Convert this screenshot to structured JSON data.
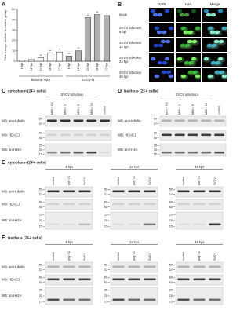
{
  "chart_data": {
    "type": "bar",
    "label": "A",
    "y_label": "Fold change relative to control group",
    "categories": [
      "6 hpi",
      "12 hpi",
      "24 hpi",
      "48 hpi",
      "72 hpi",
      "6 hpi",
      "12 hpi",
      "24 hpi",
      "48 hpi",
      "72 hpi"
    ],
    "values": [
      1.2,
      1.6,
      3.5,
      8,
      9,
      5,
      10,
      42,
      45,
      44
    ],
    "significance": [
      null,
      "*",
      "**",
      "**",
      "**",
      "**",
      "**",
      "**",
      "**",
      "**"
    ],
    "groups": [
      "histone H2A",
      "SVCV-N"
    ],
    "colors": [
      "#ffffff",
      "#b0b0b0"
    ],
    "ylim": [
      0,
      50
    ],
    "yticks": [
      0,
      10,
      20,
      30,
      40,
      50
    ]
  },
  "microscopy": {
    "label": "B",
    "columns": [
      "DAPI",
      "H2A",
      "Merge"
    ],
    "rows": [
      [
        "Mock"
      ],
      [
        "SVCV infection",
        "6 hpi"
      ],
      [
        "SVCV infection",
        "12 hpi"
      ],
      [
        "SVCV infection",
        "24 hpi"
      ],
      [
        "SVCV infection",
        "48 hpi"
      ]
    ]
  },
  "blots_moi": [
    {
      "label": "C",
      "title": "cytoplasm (ZF4 cells)",
      "header": "SVCV infection",
      "lanes": [
        "MOI = 0.1",
        "MOI = 1",
        "MOI = 5",
        "MOI = 10",
        "control"
      ],
      "rows": [
        {
          "name": "WB: anti-tubulin",
          "markers": [
            50,
            37
          ]
        },
        {
          "name": "WB: HDAC1",
          "markers": [
            60,
            50
          ]
        },
        {
          "name": "WB: anti-H2A",
          "markers": [
            25,
            20,
            15
          ]
        }
      ]
    },
    {
      "label": "D",
      "title": "Nucleus (ZF4 cells)",
      "header": "SVCV infection",
      "lanes": [
        "MOI = 0.1",
        "MOI = 1",
        "MOI = 5",
        "MOI = 10",
        "control"
      ],
      "rows": [
        {
          "name": "WB: anti-tubulin",
          "markers": [
            50,
            37
          ]
        },
        {
          "name": "WB: HDAC1",
          "markers": [
            60,
            50
          ]
        },
        {
          "name": "WB: anti-H2A",
          "markers": [
            25,
            20,
            15
          ]
        }
      ]
    }
  ],
  "blots_time": [
    {
      "label": "E",
      "title": "cytoplasm (ZF4 cells)",
      "groups": [
        {
          "name": "6 hpi",
          "lanes": [
            "control",
            "poly I:C",
            "SVCV"
          ]
        },
        {
          "name": "24 hpi",
          "lanes": [
            "control",
            "poly I:C",
            "SVCV"
          ]
        },
        {
          "name": "48 hpi",
          "lanes": [
            "control",
            "poly I:C",
            "SVCV"
          ]
        }
      ],
      "rows": [
        {
          "name": "WB: anti-tubulin",
          "markers": [
            50,
            37
          ]
        },
        {
          "name": "WB: HDAC1",
          "markers": [
            60,
            50
          ]
        },
        {
          "name": "WB: anti-H2A",
          "markers": [
            25,
            20,
            15
          ]
        }
      ]
    },
    {
      "label": "F",
      "title": "Nucleus (ZF4 cells)",
      "groups": [
        {
          "name": "6 hpi",
          "lanes": [
            "control",
            "poly I:C",
            "SVCV"
          ]
        },
        {
          "name": "24 hpi",
          "lanes": [
            "control",
            "poly I:C",
            "SVCV"
          ]
        },
        {
          "name": "48 hpi",
          "lanes": [
            "control",
            "poly I:C",
            "SVCV"
          ]
        }
      ],
      "rows": [
        {
          "name": "WB: anti-tubulin",
          "markers": [
            50,
            37
          ]
        },
        {
          "name": "WB: HDAC1",
          "markers": [
            60,
            50
          ]
        },
        {
          "name": "WB: anti-H2A",
          "markers": [
            25,
            20,
            15
          ]
        }
      ]
    }
  ]
}
